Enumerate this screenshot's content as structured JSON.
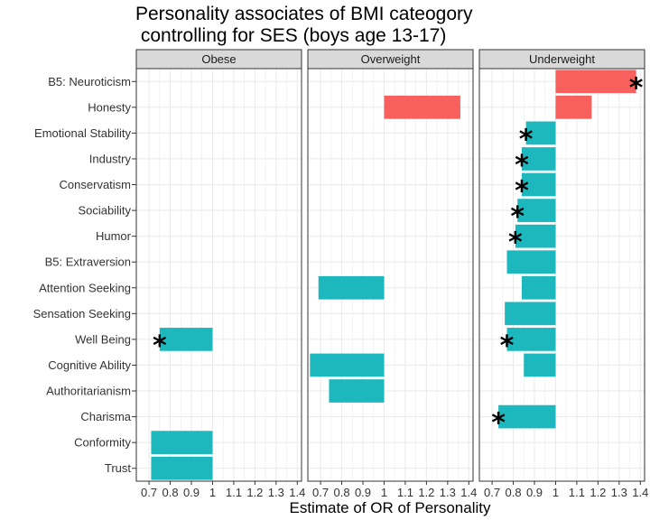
{
  "chart_data": {
    "type": "bar",
    "orientation": "horizontal",
    "title_lines": [
      "Personality associates of BMI cateogory",
      " controlling for SES (boys age 13-17)"
    ],
    "xlabel": "Estimate of OR of Personality",
    "ylabel": "",
    "xlim": [
      0.64,
      1.42
    ],
    "baseline": 1,
    "x_ticks": [
      0.7,
      0.8,
      0.9,
      1,
      1.1,
      1.2,
      1.3,
      1.4
    ],
    "x_tick_labels": [
      "0.7",
      "0.8",
      "0.9",
      "1",
      "1.1",
      "1.2",
      "1.3",
      "1.4"
    ],
    "grid": true,
    "legend": "none",
    "colors": {
      "above": "#F8605E",
      "below": "#1CB8BD",
      "strip": "#D9D9D9",
      "grid": "#EBEBEB",
      "border": "#333333"
    },
    "categories": [
      "B5: Neuroticism",
      "Honesty",
      "Emotional Stability",
      "Industry",
      "Conservatism",
      "Sociability",
      "Humor",
      "B5: Extraversion",
      "Attention Seeking",
      "Sensation Seeking",
      "Well Being",
      "Cognitive Ability",
      "Authoritarianism",
      "Charisma",
      "Conformity",
      "Trust"
    ],
    "panels": [
      {
        "name": "Obese",
        "values": [
          null,
          null,
          null,
          null,
          null,
          null,
          null,
          null,
          null,
          null,
          0.75,
          null,
          null,
          null,
          0.71,
          0.71
        ],
        "significant": [
          false,
          false,
          false,
          false,
          false,
          false,
          false,
          false,
          false,
          false,
          true,
          false,
          false,
          false,
          false,
          false
        ]
      },
      {
        "name": "Overweight",
        "values": [
          null,
          1.36,
          null,
          null,
          null,
          null,
          null,
          null,
          0.69,
          null,
          null,
          0.65,
          0.74,
          null,
          null,
          null
        ],
        "significant": [
          false,
          false,
          false,
          false,
          false,
          false,
          false,
          false,
          false,
          false,
          false,
          false,
          false,
          false,
          false,
          false
        ]
      },
      {
        "name": "Underweight",
        "values": [
          1.38,
          1.17,
          0.86,
          0.84,
          0.84,
          0.82,
          0.81,
          0.77,
          0.84,
          0.76,
          0.77,
          0.85,
          null,
          0.73,
          null,
          null
        ],
        "significant": [
          true,
          false,
          true,
          true,
          true,
          true,
          true,
          false,
          false,
          false,
          true,
          false,
          false,
          true,
          false,
          false
        ]
      }
    ],
    "significance_marker": "*"
  }
}
